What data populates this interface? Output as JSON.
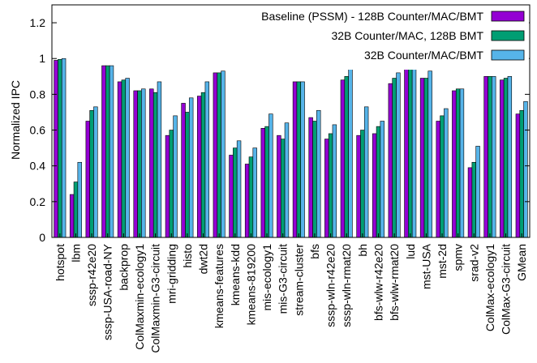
{
  "chart_data": {
    "type": "bar",
    "ylabel": "Normalized IPC",
    "xlabel": "",
    "ylim": [
      0,
      1.3
    ],
    "yticks": [
      "0",
      "0.2",
      "0.4",
      "0.6",
      "0.8",
      "1",
      "1.2"
    ],
    "grid": false,
    "legend_position": "top-right",
    "categories": [
      "hotspot",
      "lbm",
      "sssp-r42e20",
      "sssp-USA-road-NY",
      "backprop",
      "ColMaxmin-ecology1",
      "ColMaxmin-G3-circuit",
      "mri-gridding",
      "histo",
      "dwt2d",
      "kmeans-features",
      "kmeans-kdd",
      "kmeans-819200",
      "mis-ecology1",
      "mis-G3-circuit",
      "stream-cluster",
      "bfs",
      "sssp-wln-r42e20",
      "sssp-wln-rmat20",
      "bh",
      "bfs-wlw-r42e20",
      "bfs-wlw-rmat20",
      "lud",
      "mst-USA",
      "mst-2d",
      "spmv",
      "srad-v2",
      "ColMax-ecology1",
      "ColMax-G3-circuit",
      "GMean"
    ],
    "series": [
      {
        "name": "Baseline (PSSM) - 128B Counter/MAC/BMT",
        "color": "#9400d3",
        "values": [
          0.99,
          0.24,
          0.65,
          0.96,
          0.87,
          0.82,
          0.83,
          0.57,
          0.75,
          0.79,
          0.92,
          0.46,
          0.41,
          0.61,
          0.57,
          0.87,
          0.67,
          0.55,
          0.88,
          0.57,
          0.58,
          0.86,
          0.97,
          0.89,
          0.65,
          0.82,
          0.39,
          0.9,
          0.88,
          0.69
        ]
      },
      {
        "name": "32B Counter/MAC, 128B BMT",
        "color": "#009e73",
        "values": [
          0.995,
          0.31,
          0.71,
          0.96,
          0.88,
          0.82,
          0.81,
          0.6,
          0.7,
          0.81,
          0.92,
          0.5,
          0.45,
          0.62,
          0.55,
          0.87,
          0.65,
          0.58,
          0.9,
          0.6,
          0.62,
          0.89,
          0.97,
          0.89,
          0.68,
          0.83,
          0.42,
          0.9,
          0.89,
          0.71
        ]
      },
      {
        "name": "32B Counter/MAC/BMT",
        "color": "#56b4e9",
        "values": [
          1.0,
          0.42,
          0.73,
          0.96,
          0.89,
          0.83,
          0.87,
          0.68,
          0.78,
          0.87,
          0.93,
          0.54,
          0.5,
          0.69,
          0.64,
          0.87,
          0.71,
          0.63,
          0.94,
          0.73,
          0.65,
          0.92,
          0.96,
          0.93,
          0.72,
          0.83,
          0.51,
          0.9,
          0.9,
          0.76
        ]
      }
    ]
  }
}
